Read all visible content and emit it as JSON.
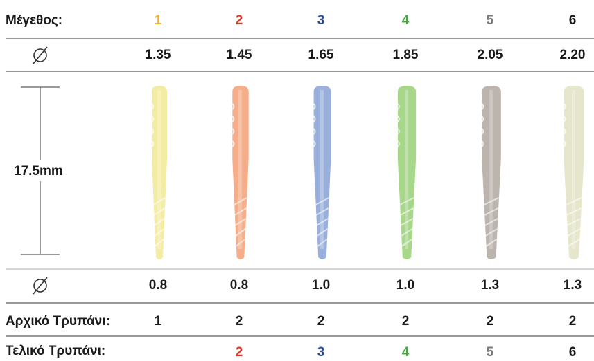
{
  "table": {
    "size_label": "Μέγεθος:",
    "sizes": [
      {
        "label": "1",
        "color": "#f5b324"
      },
      {
        "label": "2",
        "color": "#d9372c"
      },
      {
        "label": "3",
        "color": "#2c4b94"
      },
      {
        "label": "4",
        "color": "#4aa843"
      },
      {
        "label": "5",
        "color": "#777777"
      },
      {
        "label": "6",
        "color": "#1a1a1a"
      }
    ],
    "top_diameter": [
      "1.35",
      "1.45",
      "1.65",
      "1.85",
      "2.05",
      "2.20"
    ],
    "length_label": "17.5mm",
    "post_colors": [
      "#f2ea9c",
      "#f6a67e",
      "#8fa8da",
      "#9ed37c",
      "#b5ada6",
      "#e3e4c6"
    ],
    "bottom_diameter": [
      "0.8",
      "0.8",
      "1.0",
      "1.0",
      "1.3",
      "1.3"
    ],
    "initial_drill_label": "Αρχικό Τρυπάνι:",
    "initial_drill": [
      "1",
      "2",
      "2",
      "2",
      "2",
      "2"
    ],
    "final_drill_label": "Τελικό Τρυπάνι:",
    "final_drill": [
      {
        "label": "2",
        "color": "#d9372c"
      },
      {
        "label": "3",
        "color": "#2c4b94"
      },
      {
        "label": "4",
        "color": "#4aa843"
      },
      {
        "label": "5",
        "color": "#777777"
      },
      {
        "label": "6",
        "color": "#1a1a1a"
      }
    ]
  }
}
